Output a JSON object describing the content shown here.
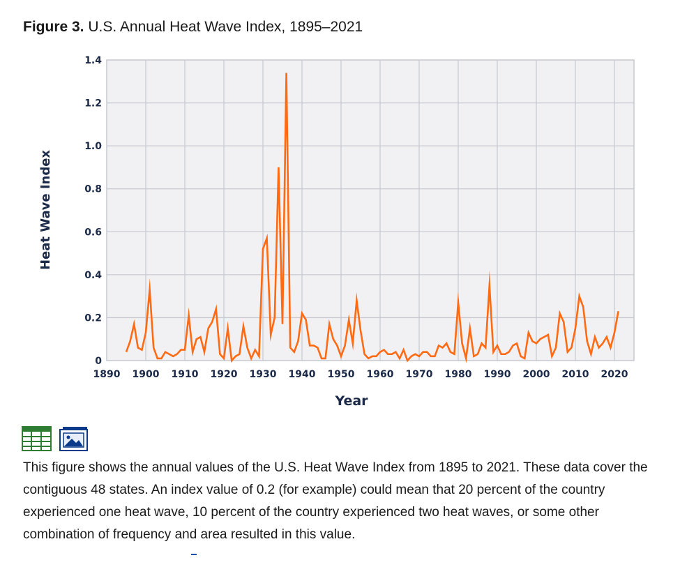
{
  "figure": {
    "label": "Figure 3.",
    "title": "U.S. Annual Heat Wave Index, 1895–2021"
  },
  "chart_data": {
    "type": "line",
    "title": "U.S. Annual Heat Wave Index, 1895–2021",
    "xlabel": "Year",
    "ylabel": "Heat Wave Index",
    "xlim": [
      1890,
      2025
    ],
    "ylim": [
      0,
      1.4
    ],
    "x_ticks": [
      1890,
      1900,
      1910,
      1920,
      1930,
      1940,
      1950,
      1960,
      1970,
      1980,
      1990,
      2000,
      2010,
      2020
    ],
    "y_ticks": [
      0,
      0.2,
      0.4,
      0.6,
      0.8,
      1.0,
      1.2,
      1.4
    ],
    "y_tick_labels": [
      "0",
      "0.2",
      "0.4",
      "0.6",
      "0.8",
      "1.0",
      "1.2",
      "1.4"
    ],
    "grid": true,
    "line_color": "#ff6a13",
    "series": [
      {
        "name": "U.S. Heat Wave Index",
        "x": [
          1895,
          1896,
          1897,
          1898,
          1899,
          1900,
          1901,
          1902,
          1903,
          1904,
          1905,
          1906,
          1907,
          1908,
          1909,
          1910,
          1911,
          1912,
          1913,
          1914,
          1915,
          1916,
          1917,
          1918,
          1919,
          1920,
          1921,
          1922,
          1923,
          1924,
          1925,
          1926,
          1927,
          1928,
          1929,
          1930,
          1931,
          1932,
          1933,
          1934,
          1935,
          1936,
          1937,
          1938,
          1939,
          1940,
          1941,
          1942,
          1943,
          1944,
          1945,
          1946,
          1947,
          1948,
          1949,
          1950,
          1951,
          1952,
          1953,
          1954,
          1955,
          1956,
          1957,
          1958,
          1959,
          1960,
          1961,
          1962,
          1963,
          1964,
          1965,
          1966,
          1967,
          1968,
          1969,
          1970,
          1971,
          1972,
          1973,
          1974,
          1975,
          1976,
          1977,
          1978,
          1979,
          1980,
          1981,
          1982,
          1983,
          1984,
          1985,
          1986,
          1987,
          1988,
          1989,
          1990,
          1991,
          1992,
          1993,
          1994,
          1995,
          1996,
          1997,
          1998,
          1999,
          2000,
          2001,
          2002,
          2003,
          2004,
          2005,
          2006,
          2007,
          2008,
          2009,
          2010,
          2011,
          2012,
          2013,
          2014,
          2015,
          2016,
          2017,
          2018,
          2019,
          2020,
          2021
        ],
        "values": [
          0.04,
          0.09,
          0.17,
          0.06,
          0.05,
          0.13,
          0.33,
          0.06,
          0.01,
          0.01,
          0.04,
          0.03,
          0.02,
          0.03,
          0.05,
          0.05,
          0.21,
          0.04,
          0.1,
          0.11,
          0.04,
          0.15,
          0.18,
          0.24,
          0.03,
          0.01,
          0.15,
          0.0,
          0.02,
          0.03,
          0.16,
          0.06,
          0.01,
          0.05,
          0.02,
          0.52,
          0.57,
          0.12,
          0.2,
          0.9,
          0.17,
          1.34,
          0.06,
          0.04,
          0.09,
          0.22,
          0.19,
          0.07,
          0.07,
          0.06,
          0.01,
          0.01,
          0.17,
          0.1,
          0.07,
          0.02,
          0.07,
          0.19,
          0.08,
          0.28,
          0.14,
          0.03,
          0.01,
          0.02,
          0.02,
          0.04,
          0.05,
          0.03,
          0.03,
          0.04,
          0.01,
          0.05,
          0.0,
          0.02,
          0.03,
          0.02,
          0.04,
          0.04,
          0.02,
          0.02,
          0.07,
          0.06,
          0.08,
          0.04,
          0.03,
          0.27,
          0.08,
          0.01,
          0.15,
          0.02,
          0.03,
          0.08,
          0.06,
          0.35,
          0.04,
          0.07,
          0.03,
          0.03,
          0.04,
          0.07,
          0.08,
          0.02,
          0.01,
          0.13,
          0.09,
          0.08,
          0.1,
          0.11,
          0.12,
          0.02,
          0.06,
          0.22,
          0.18,
          0.04,
          0.06,
          0.15,
          0.3,
          0.25,
          0.09,
          0.03,
          0.11,
          0.06,
          0.08,
          0.11,
          0.06,
          0.13,
          0.23
        ]
      }
    ]
  },
  "toolbar": {
    "data_icon": "spreadsheet-data-icon",
    "image_icon": "image-download-icon"
  },
  "caption": "This figure shows the annual values of the U.S. Heat Wave Index from 1895 to 2021. These data cover the contiguous 48 states. An index value of 0.2 (for example) could mean that 20 percent of the country experienced one heat wave, 10 percent of the country experienced two heat waves, or some other combination of frequency and area resulted in this value."
}
